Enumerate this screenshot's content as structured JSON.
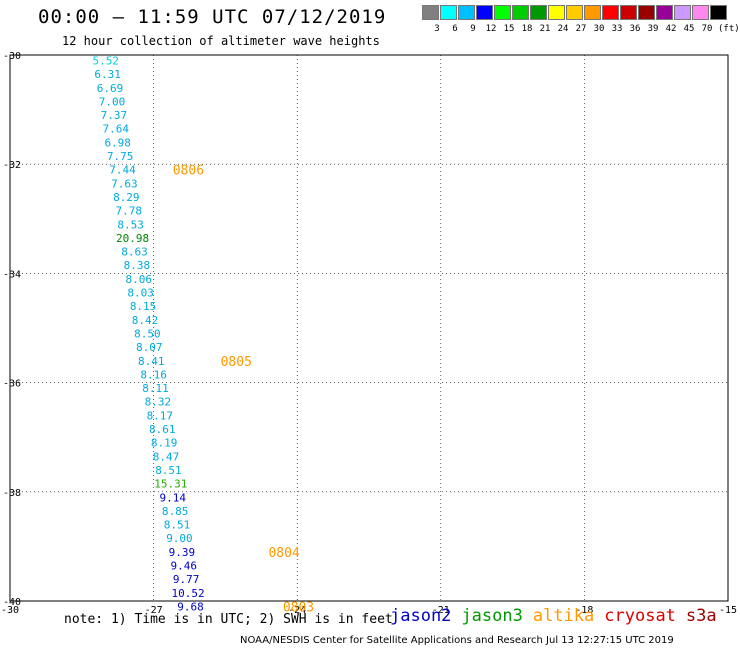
{
  "title": "00:00 – 11:59 UTC 07/12/2019",
  "subtitle": "12 hour collection of altimeter wave heights",
  "note": "note:  1) Time is in UTC;  2) SWH is in feet",
  "credit": "NOAA/NESDIS Center for Satellite Applications and Research    Jul 13 12:27:15 UTC 2019",
  "satellites": [
    {
      "name": "jason2",
      "color": "#0000cc"
    },
    {
      "name": "jason3",
      "color": "#009900"
    },
    {
      "name": "altika",
      "color": "#ff9900"
    },
    {
      "name": "cryosat",
      "color": "#dd0000"
    },
    {
      "name": "s3a",
      "color": "#990000"
    }
  ],
  "legend": {
    "unit": "(ft)",
    "bins": [
      {
        "label": "3",
        "color": "#808080"
      },
      {
        "label": "6",
        "color": "#00ffff"
      },
      {
        "label": "9",
        "color": "#00bfff"
      },
      {
        "label": "12",
        "color": "#0000ff"
      },
      {
        "label": "15",
        "color": "#00ff00"
      },
      {
        "label": "18",
        "color": "#00cc00"
      },
      {
        "label": "21",
        "color": "#009900"
      },
      {
        "label": "24",
        "color": "#ffff00"
      },
      {
        "label": "27",
        "color": "#ffcc00"
      },
      {
        "label": "30",
        "color": "#ff9900"
      },
      {
        "label": "33",
        "color": "#ff0000"
      },
      {
        "label": "36",
        "color": "#cc0000"
      },
      {
        "label": "39",
        "color": "#990000"
      },
      {
        "label": "42",
        "color": "#990099"
      },
      {
        "label": "45",
        "color": "#cc99ff"
      },
      {
        "label": "70",
        "color": "#ff88ee"
      },
      {
        "label": "",
        "color": "#000000"
      }
    ]
  },
  "chart_data": {
    "type": "scatter",
    "xlim": [
      -30,
      -15
    ],
    "ylim": [
      -40,
      -30
    ],
    "x_ticks": [
      -30,
      -27,
      -24,
      -21,
      -18,
      -15
    ],
    "x_tick_labels": [
      "-30",
      "-27",
      "-24",
      "-21",
      "-18",
      "-15"
    ],
    "y_ticks": [
      -30,
      -32,
      -34,
      -36,
      -38,
      -40
    ],
    "y_tick_labels": [
      "-30",
      "-32",
      "-34",
      "-36",
      "-38",
      "-40"
    ],
    "grid": true,
    "points": [
      {
        "lon": -28.0,
        "lat": -30.1,
        "swh": "5.52",
        "color": "#00ccdd"
      },
      {
        "lon": -27.96,
        "lat": -30.35,
        "swh": "6.31",
        "color": "#00aadd"
      },
      {
        "lon": -27.91,
        "lat": -30.6,
        "swh": "6.69",
        "color": "#00aadd"
      },
      {
        "lon": -27.87,
        "lat": -30.85,
        "swh": "7.00",
        "color": "#00aadd"
      },
      {
        "lon": -27.83,
        "lat": -31.1,
        "swh": "7.37",
        "color": "#00aadd"
      },
      {
        "lon": -27.79,
        "lat": -31.35,
        "swh": "7.64",
        "color": "#00aadd"
      },
      {
        "lon": -27.75,
        "lat": -31.6,
        "swh": "6.98",
        "color": "#00aadd"
      },
      {
        "lon": -27.7,
        "lat": -31.85,
        "swh": "7.75",
        "color": "#00aadd"
      },
      {
        "lon": -27.65,
        "lat": -32.1,
        "swh": "7.44",
        "color": "#00aadd"
      },
      {
        "lon": -27.61,
        "lat": -32.35,
        "swh": "7.63",
        "color": "#00aadd"
      },
      {
        "lon": -27.57,
        "lat": -32.6,
        "swh": "8.29",
        "color": "#00aadd"
      },
      {
        "lon": -27.52,
        "lat": -32.85,
        "swh": "7.78",
        "color": "#00aadd"
      },
      {
        "lon": -27.48,
        "lat": -33.1,
        "swh": "8.53",
        "color": "#00aadd"
      },
      {
        "lon": -27.44,
        "lat": -33.35,
        "swh": "20.98",
        "color": "#008800"
      },
      {
        "lon": -27.4,
        "lat": -33.6,
        "swh": "8.63",
        "color": "#00aadd"
      },
      {
        "lon": -27.35,
        "lat": -33.85,
        "swh": "8.38",
        "color": "#00aadd"
      },
      {
        "lon": -27.31,
        "lat": -34.1,
        "swh": "8.06",
        "color": "#00aadd"
      },
      {
        "lon": -27.27,
        "lat": -34.35,
        "swh": "8.03",
        "color": "#00aadd"
      },
      {
        "lon": -27.22,
        "lat": -34.6,
        "swh": "8.15",
        "color": "#00aadd"
      },
      {
        "lon": -27.18,
        "lat": -34.85,
        "swh": "8.42",
        "color": "#00aadd"
      },
      {
        "lon": -27.13,
        "lat": -35.1,
        "swh": "8.50",
        "color": "#00aadd"
      },
      {
        "lon": -27.09,
        "lat": -35.35,
        "swh": "8.07",
        "color": "#00aadd"
      },
      {
        "lon": -27.05,
        "lat": -35.6,
        "swh": "8.41",
        "color": "#00aadd"
      },
      {
        "lon": -27.0,
        "lat": -35.85,
        "swh": "8.16",
        "color": "#00aadd"
      },
      {
        "lon": -26.96,
        "lat": -36.1,
        "swh": "8.11",
        "color": "#00aadd"
      },
      {
        "lon": -26.91,
        "lat": -36.35,
        "swh": "8.32",
        "color": "#00aadd"
      },
      {
        "lon": -26.87,
        "lat": -36.6,
        "swh": "8.17",
        "color": "#00aadd"
      },
      {
        "lon": -26.82,
        "lat": -36.85,
        "swh": "8.61",
        "color": "#00aadd"
      },
      {
        "lon": -26.78,
        "lat": -37.1,
        "swh": "8.19",
        "color": "#00aadd"
      },
      {
        "lon": -26.74,
        "lat": -37.35,
        "swh": "8.47",
        "color": "#00aadd"
      },
      {
        "lon": -26.69,
        "lat": -37.6,
        "swh": "8.51",
        "color": "#00aadd"
      },
      {
        "lon": -26.64,
        "lat": -37.85,
        "swh": "15.31",
        "color": "#22aa00"
      },
      {
        "lon": -26.6,
        "lat": -38.1,
        "swh": "9.14",
        "color": "#0000cc"
      },
      {
        "lon": -26.55,
        "lat": -38.35,
        "swh": "8.85",
        "color": "#00aadd"
      },
      {
        "lon": -26.51,
        "lat": -38.6,
        "swh": "8.51",
        "color": "#00aadd"
      },
      {
        "lon": -26.46,
        "lat": -38.85,
        "swh": "9.00",
        "color": "#00aadd"
      },
      {
        "lon": -26.41,
        "lat": -39.1,
        "swh": "9.39",
        "color": "#0000cc"
      },
      {
        "lon": -26.37,
        "lat": -39.35,
        "swh": "9.46",
        "color": "#0000cc"
      },
      {
        "lon": -26.32,
        "lat": -39.6,
        "swh": "9.77",
        "color": "#0000cc"
      },
      {
        "lon": -26.28,
        "lat": -39.85,
        "swh": "10.52",
        "color": "#0000cc"
      },
      {
        "lon": -26.23,
        "lat": -40.1,
        "swh": "9.68",
        "color": "#0000cc"
      }
    ],
    "time_labels": [
      {
        "lon": -26.6,
        "lat": -32.1,
        "text": "0806"
      },
      {
        "lon": -25.6,
        "lat": -35.6,
        "text": "0805"
      },
      {
        "lon": -24.6,
        "lat": -39.1,
        "text": "0804"
      },
      {
        "lon": -24.3,
        "lat": -40.1,
        "text": "0803"
      }
    ],
    "time_label_color": "#ff9900"
  }
}
